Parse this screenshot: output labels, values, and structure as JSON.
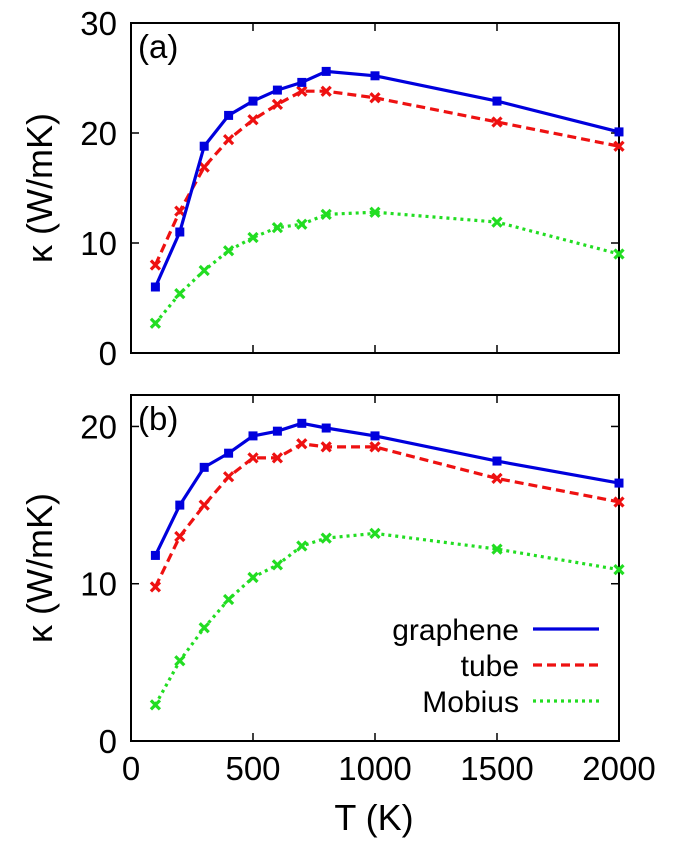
{
  "chart_data": [
    {
      "type": "line",
      "panel_label": "(a)",
      "ylabel": "κ (W/mK)",
      "xlabel": "",
      "xlim": [
        0,
        2000
      ],
      "ylim": [
        0,
        30
      ],
      "x_ticks": [
        "0",
        "500",
        "1000",
        "1500",
        "2000"
      ],
      "y_ticks": [
        "0",
        "10",
        "20",
        "30"
      ],
      "y_tick_values": [
        0,
        10,
        20,
        30
      ],
      "x": [
        100,
        200,
        300,
        400,
        500,
        600,
        700,
        800,
        1000,
        1500,
        2000
      ],
      "series": [
        {
          "name": "graphene",
          "color": "#0000dd",
          "dash": "solid",
          "values": [
            6.0,
            11.0,
            18.8,
            21.6,
            22.9,
            23.9,
            24.6,
            25.6,
            25.2,
            22.9,
            20.1
          ]
        },
        {
          "name": "tube",
          "color": "#ee1111",
          "dash": "dashed",
          "values": [
            8.0,
            12.9,
            16.9,
            19.4,
            21.2,
            22.6,
            23.8,
            23.8,
            23.2,
            21.0,
            18.8
          ]
        },
        {
          "name": "Mobius",
          "color": "#22dd22",
          "dash": "dotted",
          "values": [
            2.7,
            5.4,
            7.5,
            9.3,
            10.5,
            11.4,
            11.7,
            12.6,
            12.8,
            11.9,
            9.0
          ]
        }
      ],
      "grid": false,
      "legend": "none"
    },
    {
      "type": "line",
      "panel_label": "(b)",
      "ylabel": "κ (W/mK)",
      "xlabel": "T (K)",
      "xlim": [
        0,
        2000
      ],
      "ylim": [
        0,
        22
      ],
      "x_ticks": [
        "0",
        "500",
        "1000",
        "1500",
        "2000"
      ],
      "y_ticks": [
        "0",
        "10",
        "20"
      ],
      "y_tick_values": [
        0,
        10,
        20
      ],
      "x": [
        100,
        200,
        300,
        400,
        500,
        600,
        700,
        800,
        1000,
        1500,
        2000
      ],
      "series": [
        {
          "name": "graphene",
          "color": "#0000dd",
          "dash": "solid",
          "values": [
            11.8,
            15.0,
            17.4,
            18.3,
            19.4,
            19.7,
            20.2,
            19.9,
            19.4,
            17.8,
            16.4
          ]
        },
        {
          "name": "tube",
          "color": "#ee1111",
          "dash": "dashed",
          "values": [
            9.8,
            13.0,
            15.0,
            16.8,
            18.0,
            18.0,
            18.9,
            18.7,
            18.7,
            16.7,
            15.2
          ]
        },
        {
          "name": "Mobius",
          "color": "#22dd22",
          "dash": "dotted",
          "values": [
            2.3,
            5.1,
            7.2,
            9.0,
            10.4,
            11.2,
            12.4,
            12.9,
            13.2,
            12.2,
            10.9
          ]
        }
      ],
      "grid": false,
      "legend": "bottom-right"
    }
  ]
}
